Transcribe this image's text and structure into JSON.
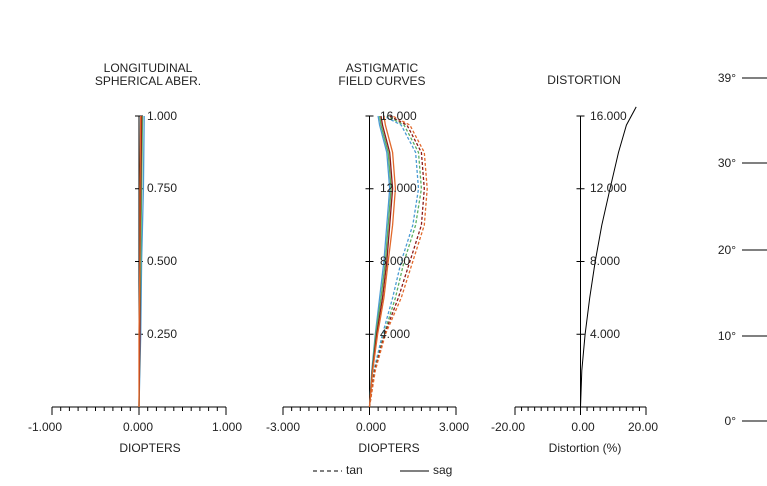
{
  "chart_data": [
    {
      "type": "line",
      "title": [
        "LONGITUDINAL",
        "SPHERICAL ABER."
      ],
      "xlabel": "DIOPTERS",
      "x_tick_labels": [
        "-1.000",
        "0.000",
        "1.000"
      ],
      "xlim": [
        -1,
        1
      ],
      "y_tick_labels": [
        "0.250",
        "0.500",
        "0.750",
        "1.000"
      ],
      "ylim": [
        0,
        1
      ],
      "series": [
        {
          "color": "#4a9bd4",
          "points": [
            [
              0.0,
              0
            ],
            [
              0.02,
              0.25
            ],
            [
              0.03,
              0.5
            ],
            [
              0.05,
              0.75
            ],
            [
              0.06,
              1.0
            ]
          ]
        },
        {
          "color": "#5aae61",
          "points": [
            [
              0.0,
              0
            ],
            [
              0.01,
              0.25
            ],
            [
              0.02,
              0.5
            ],
            [
              0.03,
              0.75
            ],
            [
              0.04,
              1.0
            ]
          ]
        },
        {
          "color": "#8b1a1a",
          "points": [
            [
              0.0,
              0
            ],
            [
              0.01,
              0.25
            ],
            [
              0.01,
              0.5
            ],
            [
              0.02,
              0.75
            ],
            [
              0.03,
              1.0
            ]
          ]
        },
        {
          "color": "#e2692b",
          "points": [
            [
              0.0,
              0
            ],
            [
              0.0,
              0.25
            ],
            [
              0.01,
              0.5
            ],
            [
              0.01,
              0.75
            ],
            [
              0.02,
              1.0
            ]
          ]
        }
      ]
    },
    {
      "type": "line",
      "title": [
        "ASTIGMATIC",
        "FIELD CURVES"
      ],
      "xlabel": "DIOPTERS",
      "x_tick_labels": [
        "-3.000",
        "0.000",
        "3.000"
      ],
      "xlim": [
        -3,
        3
      ],
      "y_tick_labels": [
        "4.000",
        "8.000",
        "12.000",
        "16.000"
      ],
      "ylim": [
        0,
        16
      ],
      "series": [
        {
          "color": "#4a9bd4",
          "style": "tan",
          "points": [
            [
              0,
              0
            ],
            [
              0.15,
              2
            ],
            [
              0.45,
              4
            ],
            [
              0.8,
              6
            ],
            [
              1.1,
              8
            ],
            [
              1.5,
              10
            ],
            [
              1.7,
              12
            ],
            [
              1.6,
              14
            ],
            [
              1.1,
              15.5
            ],
            [
              0.5,
              16
            ]
          ]
        },
        {
          "color": "#5aae61",
          "style": "tan",
          "points": [
            [
              0,
              0
            ],
            [
              0.17,
              2
            ],
            [
              0.5,
              4
            ],
            [
              0.9,
              6
            ],
            [
              1.2,
              8
            ],
            [
              1.6,
              10
            ],
            [
              1.8,
              12
            ],
            [
              1.7,
              14
            ],
            [
              1.2,
              15.5
            ],
            [
              0.6,
              16
            ]
          ]
        },
        {
          "color": "#8b1a1a",
          "style": "tan",
          "points": [
            [
              0,
              0
            ],
            [
              0.18,
              2
            ],
            [
              0.52,
              4
            ],
            [
              1.0,
              6
            ],
            [
              1.4,
              8
            ],
            [
              1.8,
              10
            ],
            [
              1.9,
              12
            ],
            [
              1.8,
              14
            ],
            [
              1.3,
              15.5
            ],
            [
              0.7,
              16
            ]
          ]
        },
        {
          "color": "#e2692b",
          "style": "tan",
          "points": [
            [
              0,
              0
            ],
            [
              0.2,
              2
            ],
            [
              0.55,
              4
            ],
            [
              1.1,
              6
            ],
            [
              1.5,
              8
            ],
            [
              1.9,
              10
            ],
            [
              2.0,
              12
            ],
            [
              1.9,
              14
            ],
            [
              1.4,
              15.5
            ],
            [
              0.8,
              16
            ]
          ]
        },
        {
          "color": "#4a9bd4",
          "style": "sag",
          "points": [
            [
              0,
              0
            ],
            [
              0.08,
              2
            ],
            [
              0.2,
              4
            ],
            [
              0.35,
              6
            ],
            [
              0.5,
              8
            ],
            [
              0.6,
              10
            ],
            [
              0.7,
              12
            ],
            [
              0.6,
              14
            ],
            [
              0.35,
              15.5
            ],
            [
              0.3,
              16
            ]
          ]
        },
        {
          "color": "#5aae61",
          "style": "sag",
          "points": [
            [
              0,
              0
            ],
            [
              0.09,
              2
            ],
            [
              0.22,
              4
            ],
            [
              0.4,
              6
            ],
            [
              0.55,
              8
            ],
            [
              0.65,
              10
            ],
            [
              0.75,
              12
            ],
            [
              0.65,
              14
            ],
            [
              0.4,
              15.5
            ],
            [
              0.35,
              16
            ]
          ]
        },
        {
          "color": "#8b1a1a",
          "style": "sag",
          "points": [
            [
              0,
              0
            ],
            [
              0.1,
              2
            ],
            [
              0.25,
              4
            ],
            [
              0.45,
              6
            ],
            [
              0.6,
              8
            ],
            [
              0.7,
              10
            ],
            [
              0.8,
              12
            ],
            [
              0.7,
              14
            ],
            [
              0.45,
              15.5
            ],
            [
              0.4,
              16
            ]
          ]
        },
        {
          "color": "#e2692b",
          "style": "sag",
          "points": [
            [
              0,
              0
            ],
            [
              0.11,
              2
            ],
            [
              0.28,
              4
            ],
            [
              0.5,
              6
            ],
            [
              0.65,
              8
            ],
            [
              0.8,
              10
            ],
            [
              0.9,
              12
            ],
            [
              0.8,
              14
            ],
            [
              0.55,
              15.5
            ],
            [
              0.5,
              16
            ]
          ]
        }
      ]
    },
    {
      "type": "line",
      "title": [
        "DISTORTION"
      ],
      "xlabel": "Distortion (%)",
      "x_tick_labels": [
        "-20.00",
        "0.00",
        "20.00"
      ],
      "xlim": [
        -20,
        20
      ],
      "y_tick_labels": [
        "4.000",
        "8.000",
        "12.000",
        "16.000"
      ],
      "ylim": [
        0,
        16
      ],
      "series": [
        {
          "color": "#000000",
          "points": [
            [
              0,
              0
            ],
            [
              0.4,
              2
            ],
            [
              1.4,
              4
            ],
            [
              2.8,
              6
            ],
            [
              4.5,
              8
            ],
            [
              6.5,
              10
            ],
            [
              9,
              12
            ],
            [
              11.6,
              14
            ],
            [
              14,
              15.5
            ],
            [
              17,
              16.5
            ]
          ]
        }
      ]
    }
  ],
  "field_scale": {
    "labels": [
      "0°",
      "10°",
      "20°",
      "30°",
      "39°"
    ],
    "values": [
      0,
      10,
      20,
      30,
      39
    ]
  },
  "legend": {
    "tan_label": "tan",
    "sag_label": "sag"
  },
  "colors": {
    "axis": "#000000",
    "text": "#222222"
  }
}
